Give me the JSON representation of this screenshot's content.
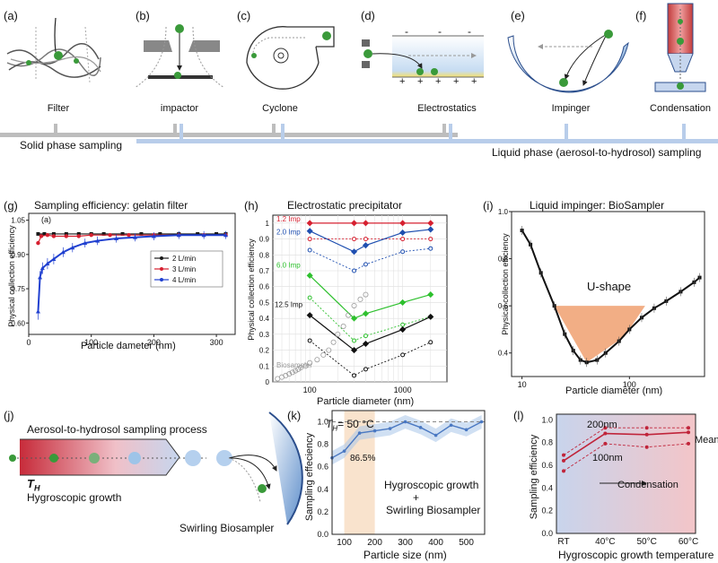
{
  "top_panels": [
    {
      "letter": "(a)",
      "caption": "Filter"
    },
    {
      "letter": "(b)",
      "caption": "impactor"
    },
    {
      "letter": "(c)",
      "caption": "Cyclone"
    },
    {
      "letter": "(d)",
      "caption": "Electrostatics"
    },
    {
      "letter": "(e)",
      "caption": "Impinger"
    },
    {
      "letter": "(f)",
      "caption": "Condensation"
    }
  ],
  "timeline": {
    "solid": "Solid phase sampling",
    "liquid": "Liquid phase (aerosol-to-hydrosol) sampling"
  },
  "panel_d_signs": {
    "minus": "-",
    "plus": "+"
  },
  "panel_g": {
    "letter": "(g)",
    "title": "Sampling efficiency: gelatin filter",
    "inset": "(a)",
    "xlabel": "Particle dameter (nm)",
    "ylabel": "Physical collection efficiency",
    "xticks": [
      "0",
      "100",
      "200",
      "300"
    ],
    "yticks": [
      "0.60",
      "0.75",
      "0.90",
      "1.05"
    ],
    "legend": [
      "2 L/min",
      "3 L/min",
      "4 L/min"
    ],
    "colors": [
      "#1a1a1a",
      "#d62030",
      "#2040d0"
    ]
  },
  "panel_h": {
    "letter": "(h)",
    "title": "Electrostatic precipitator",
    "xlabel": "Particle diameter (nm)",
    "ylabel": "Physical collection efficiency",
    "xticks": [
      "100",
      "1000"
    ],
    "yticks": [
      "0",
      "0.1",
      "0.2",
      "0.3",
      "0.4",
      "0.5",
      "0.6",
      "0.7",
      "0.8",
      "0.9",
      "1"
    ],
    "labels": [
      "1.2 Imp",
      "2.0 Imp",
      "6.0 Imp",
      "12.5 Imp",
      "Biosampler"
    ],
    "colors": [
      "#d62030",
      "#1f4fb0",
      "#2ec02e",
      "#111111",
      "#999999"
    ]
  },
  "panel_i": {
    "letter": "(i)",
    "title": "Liquid impinger: BioSampler",
    "xlabel": "Particle diameter (nm)",
    "ylabel": "Physical collection efficiency",
    "xticks": [
      "10",
      "100"
    ],
    "yticks": [
      "0.4",
      "0.6",
      "0.8",
      "1.0"
    ],
    "annotation": "U-shape",
    "fill": "#f0a070"
  },
  "panel_j": {
    "letter": "(j)",
    "title": "Aerosol-to-hydrosol sampling process",
    "th": "T",
    "th_sub": "H",
    "growth": "Hygroscopic growth",
    "swirl": "Swirling Biosampler"
  },
  "panel_k": {
    "letter": "(k)",
    "th_label": "T",
    "th_sub": "H",
    "th_value": "= 50 °C",
    "pct": "86.5%",
    "note1": "Hygroscopic growth",
    "note2": "+",
    "note3": "Swirling Biosampler",
    "xlabel": "Particle size (nm)",
    "ylabel": "Sampling effeciency",
    "xticks": [
      "100",
      "200",
      "300",
      "400",
      "500"
    ],
    "yticks": [
      "0.0",
      "0.2",
      "0.4",
      "0.6",
      "0.8",
      "1.0"
    ]
  },
  "panel_l": {
    "letter": "(l)",
    "xlabel": "Hygroscopic growth temperature",
    "ylabel": "Sampling efficiency",
    "xticks": [
      "RT",
      "40°C",
      "50°C",
      "60°C"
    ],
    "yticks": [
      "0.0",
      "0.2",
      "0.4",
      "0.6",
      "0.8",
      "1.0"
    ],
    "label_200": "200nm",
    "label_100": "100nm",
    "label_mean": "Mean",
    "arrow_label": "Condensation"
  },
  "chart_data": [
    {
      "type": "scatter",
      "title": "Sampling efficiency: gelatin filter",
      "xlabel": "Particle dameter (nm)",
      "ylabel": "Physical collection efficiency",
      "xlim": [
        0,
        330
      ],
      "ylim": [
        0.55,
        1.08
      ],
      "series": [
        {
          "name": "2 L/min",
          "x": [
            15,
            25,
            40,
            60,
            80,
            100,
            120,
            150,
            180,
            210,
            240,
            270,
            300,
            315
          ],
          "y": [
            0.99,
            0.99,
            0.99,
            0.99,
            0.99,
            0.99,
            0.99,
            0.99,
            0.99,
            0.99,
            0.99,
            0.99,
            0.99,
            0.99
          ]
        },
        {
          "name": "3 L/min",
          "x": [
            15,
            20,
            30,
            40,
            60,
            80,
            100,
            130,
            160,
            200,
            240,
            280,
            315
          ],
          "y": [
            0.95,
            0.98,
            0.985,
            0.98,
            0.98,
            0.98,
            0.985,
            0.985,
            0.985,
            0.985,
            0.985,
            0.985,
            0.985
          ]
        },
        {
          "name": "4 L/min",
          "x": [
            15,
            18,
            22,
            30,
            40,
            55,
            70,
            90,
            110,
            140,
            170,
            200,
            240,
            280,
            315
          ],
          "y": [
            0.65,
            0.8,
            0.84,
            0.86,
            0.88,
            0.91,
            0.93,
            0.95,
            0.96,
            0.97,
            0.975,
            0.98,
            0.985,
            0.985,
            0.985
          ]
        }
      ]
    },
    {
      "type": "line",
      "title": "Electrostatic precipitator",
      "xlabel": "Particle diameter (nm)",
      "ylabel": "Physical collection efficiency",
      "xscale": "log",
      "xlim": [
        40,
        3000
      ],
      "ylim": [
        0,
        1.05
      ],
      "x": [
        100,
        300,
        400,
        1000,
        2000
      ],
      "series": [
        {
          "name": "1.2 Imp",
          "values": [
            1.0,
            1.0,
            1.0,
            1.0,
            1.0
          ]
        },
        {
          "name": "2.0 Imp",
          "values": [
            0.95,
            0.82,
            0.86,
            0.94,
            0.96
          ]
        },
        {
          "name": "6.0 Imp",
          "values": [
            0.67,
            0.4,
            0.43,
            0.5,
            0.55
          ]
        },
        {
          "name": "12.5 Imp",
          "values": [
            0.42,
            0.2,
            0.24,
            0.33,
            0.41
          ]
        }
      ]
    },
    {
      "type": "line",
      "title": "Liquid impinger: BioSampler",
      "xlabel": "Particle diameter (nm)",
      "ylabel": "Physical collection efficiency",
      "xscale": "log",
      "xlim": [
        8,
        500
      ],
      "ylim": [
        0.3,
        1.0
      ],
      "x": [
        10,
        12,
        15,
        20,
        25,
        30,
        35,
        40,
        50,
        60,
        80,
        100,
        130,
        170,
        220,
        300,
        400,
        450
      ],
      "values": [
        0.92,
        0.86,
        0.74,
        0.6,
        0.48,
        0.41,
        0.37,
        0.36,
        0.37,
        0.4,
        0.45,
        0.5,
        0.55,
        0.59,
        0.62,
        0.66,
        0.7,
        0.72
      ],
      "annotation": "U-shape"
    },
    {
      "type": "line",
      "title": "",
      "xlabel": "Particle size (nm)",
      "ylabel": "Sampling effeciency",
      "xlim": [
        60,
        560
      ],
      "ylim": [
        0,
        1.1
      ],
      "x": [
        60,
        100,
        150,
        200,
        250,
        300,
        350,
        400,
        450,
        500,
        550
      ],
      "values": [
        0.68,
        0.74,
        0.9,
        0.92,
        0.94,
        1.0,
        0.95,
        0.88,
        0.97,
        0.93,
        1.0
      ],
      "reference_line": 1.0,
      "highlight_range": [
        100,
        200
      ],
      "annotation": "86.5%"
    },
    {
      "type": "line",
      "title": "",
      "xlabel": "Hygroscopic growth temperature",
      "ylabel": "Sampling efficiency",
      "categories": [
        "RT",
        "40°C",
        "50°C",
        "60°C"
      ],
      "ylim": [
        0,
        1.05
      ],
      "series": [
        {
          "name": "200nm",
          "values": [
            0.69,
            0.93,
            0.93,
            0.93
          ]
        },
        {
          "name": "Mean",
          "values": [
            0.64,
            0.88,
            0.87,
            0.89
          ]
        },
        {
          "name": "100nm",
          "values": [
            0.55,
            0.79,
            0.76,
            0.79
          ]
        }
      ]
    }
  ]
}
